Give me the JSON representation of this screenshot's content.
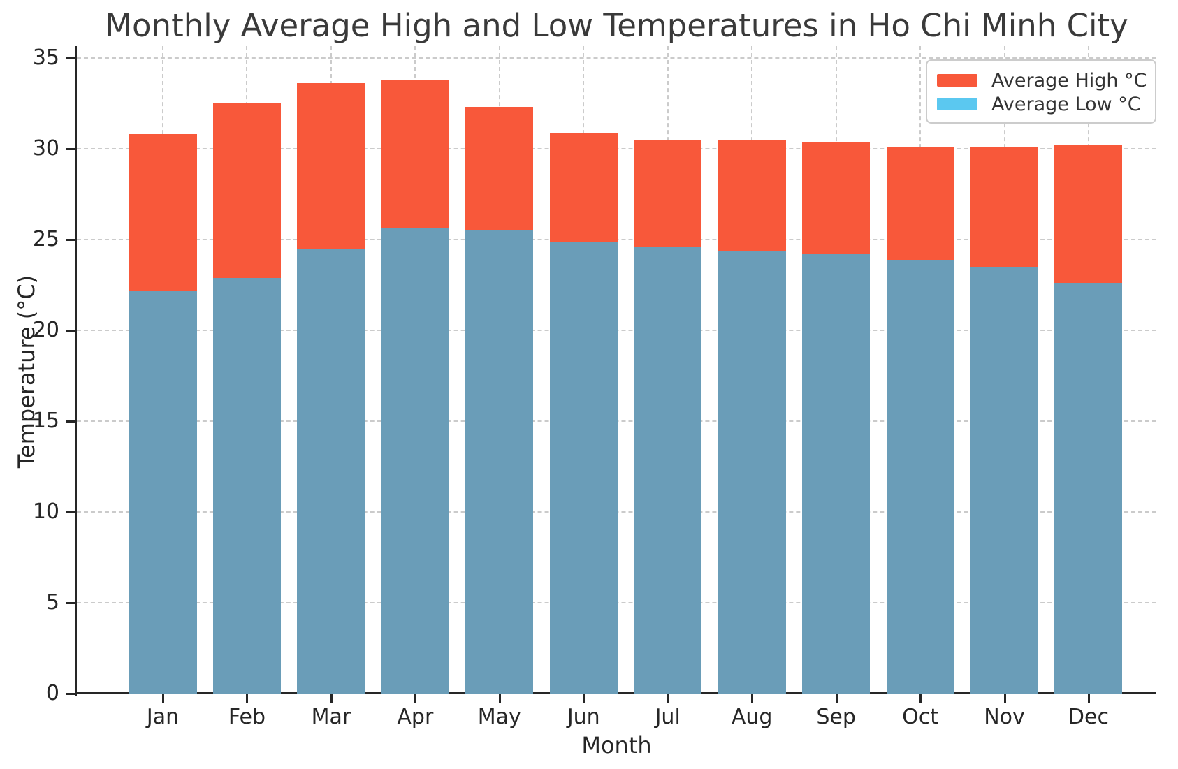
{
  "title": "Monthly Average High and Low Temperatures in Ho Chi Minh City",
  "axes": {
    "x_label": "Month",
    "y_label": "Temperature (°C)",
    "y_tick_labels": [
      "0",
      "5",
      "10",
      "15",
      "20",
      "25",
      "30",
      "35"
    ]
  },
  "colors": {
    "high": "#F8583A",
    "low_bar": "#6A9DB8",
    "low_legend": "#5BC8F0",
    "grid": "#CBCBCB",
    "spine": "#262626",
    "title_text": "#3A3A3A"
  },
  "chart_data": {
    "type": "bar",
    "subtype": "overlaid (low bars drawn in front of high bars, both starting at 0)",
    "title": "Monthly Average High and Low Temperatures in Ho Chi Minh City",
    "xlabel": "Month",
    "ylabel": "Temperature (°C)",
    "categories": [
      "Jan",
      "Feb",
      "Mar",
      "Apr",
      "May",
      "Jun",
      "Jul",
      "Aug",
      "Sep",
      "Oct",
      "Nov",
      "Dec"
    ],
    "series": [
      {
        "name": "Average High °C",
        "color": "#F8583A",
        "values": [
          30.8,
          32.5,
          33.6,
          33.8,
          32.3,
          30.9,
          30.5,
          30.5,
          30.4,
          30.1,
          30.1,
          30.2
        ]
      },
      {
        "name": "Average Low °C",
        "color": "#5BC8F0",
        "bar_color": "#6A9DB8",
        "values": [
          22.2,
          22.9,
          24.5,
          25.6,
          25.5,
          24.9,
          24.6,
          24.4,
          24.2,
          23.9,
          23.5,
          22.6
        ]
      }
    ],
    "ylim": [
      0,
      35.65
    ],
    "yticks": [
      0,
      5,
      10,
      15,
      20,
      25,
      30,
      35
    ],
    "grid": "dashed, horizontal and vertical",
    "legend_position": "upper right"
  }
}
